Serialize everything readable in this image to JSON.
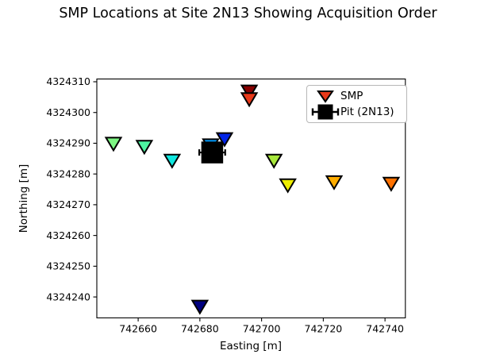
{
  "chart_data": {
    "type": "scatter",
    "title": "SMP Locations at Site 2N13 Showing Acquisition Order",
    "xlabel": "Easting [m]",
    "ylabel": "Northing [m]",
    "xlim": [
      742646.6,
      742746.6
    ],
    "ylim": [
      4324233.2,
      4324310.9
    ],
    "xticks": [
      742660,
      742680,
      742700,
      742720,
      742740
    ],
    "yticks": [
      4324240,
      4324250,
      4324260,
      4324270,
      4324280,
      4324290,
      4324300,
      4324310
    ],
    "grid": false,
    "legend": {
      "position": "upper-right",
      "entries": [
        {
          "label": "SMP",
          "marker": "triangle-down",
          "color": "#E8391A",
          "edge_color": "#000000"
        },
        {
          "label": "Pit (2N13)",
          "marker": "square-with-errorbar",
          "color": "#000000"
        }
      ]
    },
    "series": [
      {
        "name": "SMP",
        "marker": "triangle-down",
        "edge_color": "#000000",
        "colormap": "jet (color encodes acquisition order)",
        "points": [
          {
            "order": 1,
            "easting": 742680.0,
            "northing": 4324237.0,
            "color": "#000080"
          },
          {
            "order": 2,
            "easting": 742688.0,
            "northing": 4324291.5,
            "color": "#0023E6"
          },
          {
            "order": 3,
            "easting": 742683.5,
            "northing": 4324289.5,
            "color": "#009CFF"
          },
          {
            "order": 4,
            "easting": 742671.0,
            "northing": 4324284.5,
            "color": "#0FE8E0"
          },
          {
            "order": 5,
            "easting": 742662.0,
            "northing": 4324289.0,
            "color": "#4DF5A0"
          },
          {
            "order": 6,
            "easting": 742652.0,
            "northing": 4324290.0,
            "color": "#7DF583"
          },
          {
            "order": 7,
            "easting": 742704.0,
            "northing": 4324284.5,
            "color": "#A8E83C"
          },
          {
            "order": 8,
            "easting": 742708.5,
            "northing": 4324276.5,
            "color": "#EDED00"
          },
          {
            "order": 9,
            "easting": 742723.5,
            "northing": 4324277.5,
            "color": "#FFAD00"
          },
          {
            "order": 10,
            "easting": 742742.0,
            "northing": 4324277.0,
            "color": "#FF7100"
          },
          {
            "order": 11,
            "easting": 742696.0,
            "northing": 4324304.5,
            "color": "#E8391A"
          },
          {
            "order": 12,
            "easting": 742696.0,
            "northing": 4324307.0,
            "color": "#870000"
          }
        ]
      },
      {
        "name": "Pit (2N13)",
        "marker": "square",
        "color": "#000000",
        "points": [
          {
            "easting": 742684.0,
            "northing": 4324287.0,
            "xerr": 4.2
          }
        ]
      }
    ]
  }
}
